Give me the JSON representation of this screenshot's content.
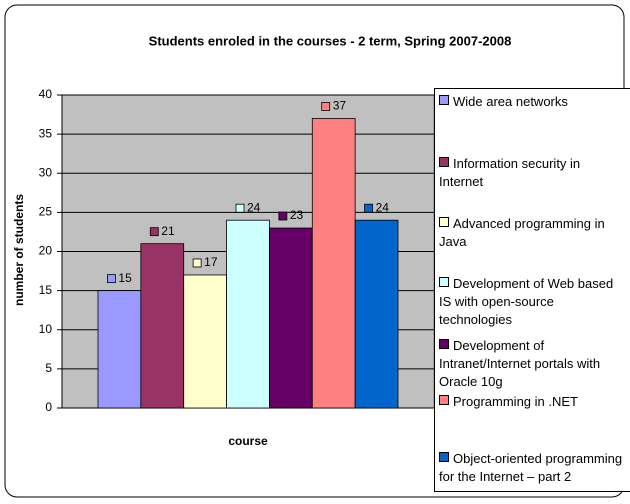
{
  "chart_data": {
    "type": "bar",
    "title": "Students enroled in the courses - 2 term, Spring 2007-2008",
    "x_label": "course",
    "y_label": "number of students",
    "categories": [
      null
    ],
    "series": [
      {
        "name": "Wide area networks",
        "color": "#9999ff",
        "values": [
          15
        ]
      },
      {
        "name": "Information security in Internet",
        "color": "#993366",
        "values": [
          21
        ]
      },
      {
        "name": "Advanced programming in Java",
        "color": "#ffffcc",
        "values": [
          17
        ]
      },
      {
        "name": "Development of Web based IS with open-source technologies",
        "color": "#ccffff",
        "values": [
          24
        ]
      },
      {
        "name": "Development of Intranet/Internet portals with Oracle 10g",
        "color": "#660066",
        "values": [
          23
        ]
      },
      {
        "name": "Programming in .NET",
        "color": "#ff8080",
        "values": [
          37
        ]
      },
      {
        "name": "Object-oriented programming for the Internet – part 2",
        "color": "#0066cc",
        "values": [
          24
        ]
      }
    ],
    "ylim": [
      0,
      40
    ],
    "yticks": [
      0,
      5,
      10,
      15,
      20,
      25,
      30,
      35,
      40
    ],
    "grid": true,
    "legend": "right"
  }
}
